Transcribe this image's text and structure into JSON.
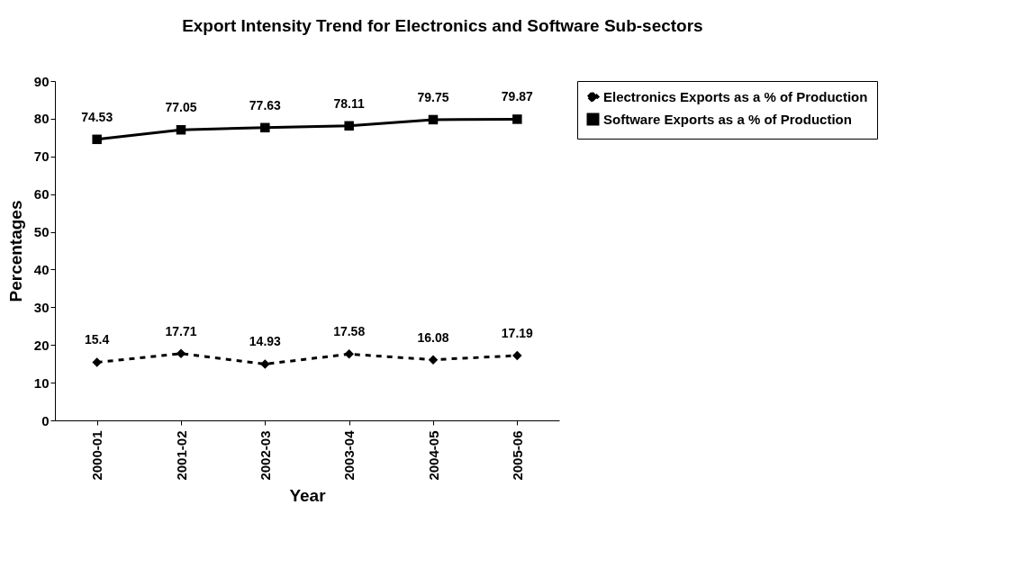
{
  "chart_data": {
    "type": "line",
    "title": "Export Intensity Trend for Electronics and Software Sub-sectors",
    "xlabel": "Year",
    "ylabel": "Percentages",
    "categories": [
      "2000-01",
      "2001-02",
      "2002-03",
      "2003-04",
      "2004-05",
      "2005-06"
    ],
    "series": [
      {
        "name": "Electronics Exports as a % of Production",
        "color": "#000000",
        "marker": "diamond",
        "line_style": "dashed",
        "values": [
          15.4,
          17.71,
          14.93,
          17.58,
          16.08,
          17.19
        ]
      },
      {
        "name": "Software Exports as a % of Production",
        "color": "#000000",
        "marker": "square",
        "line_style": "solid",
        "values": [
          74.53,
          77.05,
          77.63,
          78.11,
          79.75,
          79.87
        ]
      }
    ],
    "ylim": [
      0,
      90
    ],
    "yticks": [
      0,
      10,
      20,
      30,
      40,
      50,
      60,
      70,
      80,
      90
    ],
    "grid": false,
    "legend": "right",
    "data_labels": true
  }
}
